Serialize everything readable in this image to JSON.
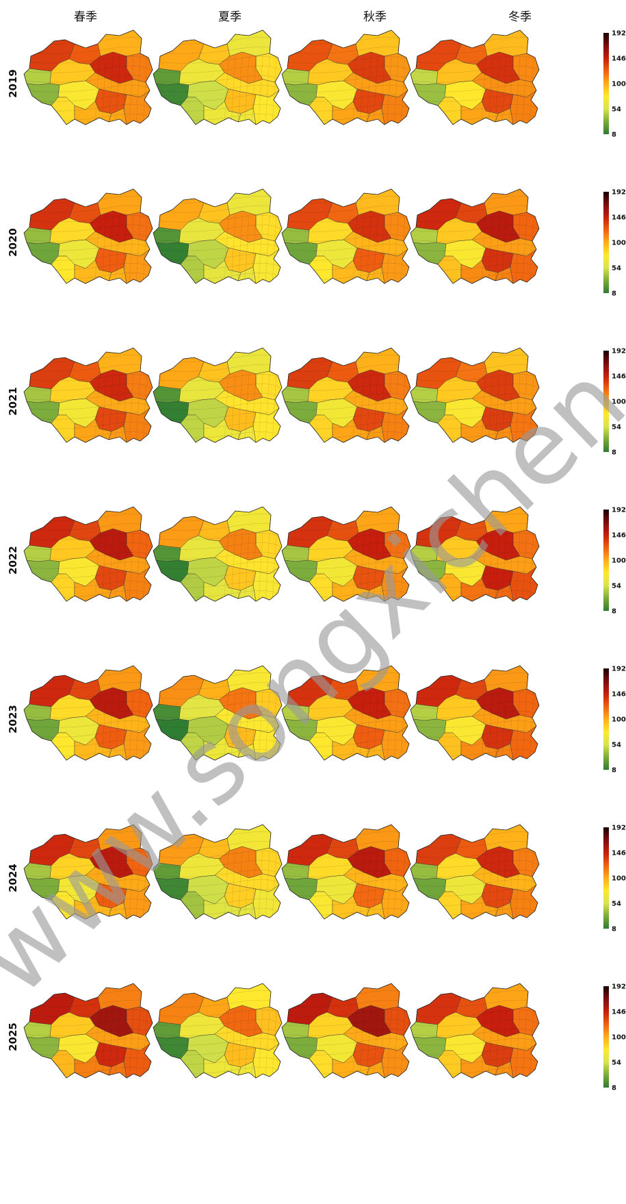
{
  "seasons": [
    "春季",
    "夏季",
    "秋季",
    "冬季"
  ],
  "years": [
    "2019",
    "2020",
    "2021",
    "2022",
    "2023",
    "2024",
    "2025"
  ],
  "colorbar": {
    "ticks": [
      192,
      146,
      100,
      54,
      8
    ],
    "min": 8,
    "max": 192,
    "colors": [
      "#2e7d32",
      "#7aab3c",
      "#d8e44a",
      "#ffe82e",
      "#ffae18",
      "#f06010",
      "#c81e0e",
      "#7a0d0d",
      "#1a0000"
    ]
  },
  "levels": [
    [
      [
        0.62,
        0.44,
        0.58,
        0.6
      ],
      [
        0.4,
        0.28,
        0.4,
        0.42
      ],
      [
        0.58,
        0.4,
        0.6,
        0.6
      ]
    ],
    [
      [
        0.64,
        0.44,
        0.6,
        0.66
      ],
      [
        0.36,
        0.26,
        0.36,
        0.4
      ],
      [
        0.56,
        0.38,
        0.56,
        0.64
      ]
    ],
    [
      [
        0.62,
        0.44,
        0.62,
        0.58
      ],
      [
        0.38,
        0.26,
        0.38,
        0.4
      ],
      [
        0.6,
        0.4,
        0.6,
        0.62
      ]
    ],
    [
      [
        0.66,
        0.46,
        0.64,
        0.64
      ],
      [
        0.4,
        0.26,
        0.38,
        0.4
      ],
      [
        0.6,
        0.38,
        0.58,
        0.68
      ]
    ],
    [
      [
        0.66,
        0.48,
        0.64,
        0.66
      ],
      [
        0.36,
        0.24,
        0.4,
        0.4
      ],
      [
        0.56,
        0.4,
        0.56,
        0.64
      ]
    ],
    [
      [
        0.66,
        0.46,
        0.66,
        0.62
      ],
      [
        0.38,
        0.28,
        0.36,
        0.36
      ],
      [
        0.56,
        0.36,
        0.54,
        0.6
      ]
    ],
    [
      [
        0.7,
        0.5,
        0.7,
        0.64
      ],
      [
        0.4,
        0.28,
        0.38,
        0.4
      ],
      [
        0.66,
        0.4,
        0.58,
        0.62
      ]
    ]
  ],
  "watermark": "www.songxichen.com"
}
